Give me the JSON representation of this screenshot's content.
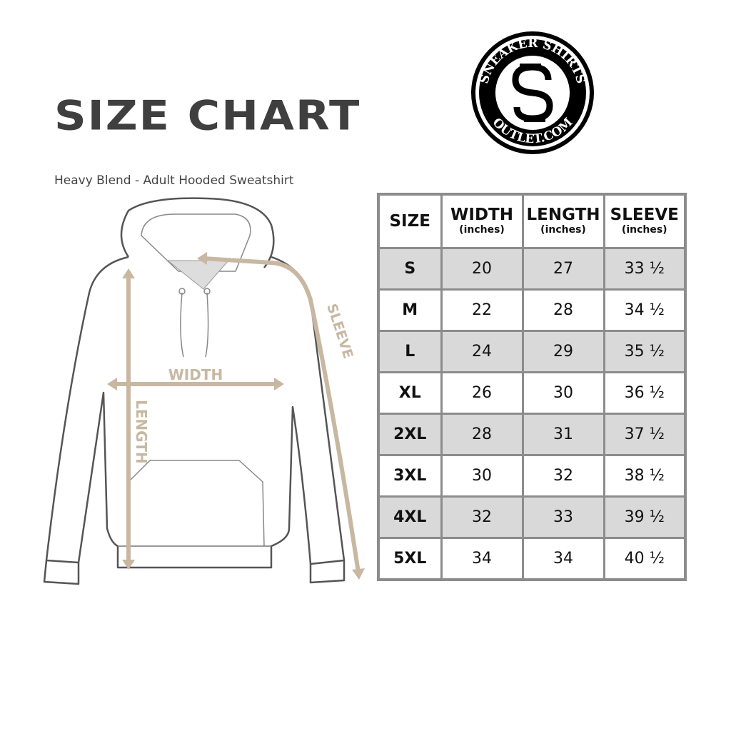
{
  "title": "SIZE CHART",
  "subtitle": "Heavy Blend - Adult Hooded Sweatshirt",
  "logo": {
    "top_text": "SNEAKER SHIRTS",
    "bottom_text": "OUTLET.COM"
  },
  "diagram_labels": {
    "width": "WIDTH",
    "length": "LENGTH",
    "sleeve": "SLEEVE"
  },
  "colors": {
    "measure": "#c8b8a2",
    "stripe": "#d9d9d9",
    "border": "#8c8c8c",
    "title": "#3f3f3f"
  },
  "table": {
    "headers": [
      {
        "label": "SIZE",
        "unit": ""
      },
      {
        "label": "WIDTH",
        "unit": "(inches)"
      },
      {
        "label": "LENGTH",
        "unit": "(inches)"
      },
      {
        "label": "SLEEVE",
        "unit": "(inches)"
      }
    ],
    "rows": [
      [
        "S",
        "20",
        "27",
        "33 ½"
      ],
      [
        "M",
        "22",
        "28",
        "34 ½"
      ],
      [
        "L",
        "24",
        "29",
        "35 ½"
      ],
      [
        "XL",
        "26",
        "30",
        "36 ½"
      ],
      [
        "2XL",
        "28",
        "31",
        "37 ½"
      ],
      [
        "3XL",
        "30",
        "32",
        "38 ½"
      ],
      [
        "4XL",
        "32",
        "33",
        "39 ½"
      ],
      [
        "5XL",
        "34",
        "34",
        "40 ½"
      ]
    ]
  }
}
